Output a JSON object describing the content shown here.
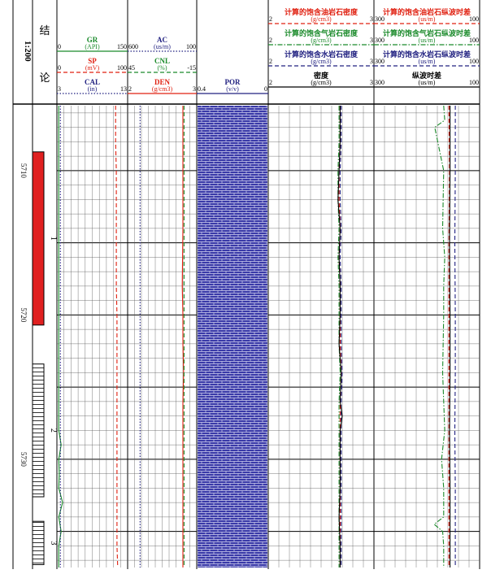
{
  "scale_label": "1:200",
  "conclusion_header": [
    "结",
    "论"
  ],
  "depth_marks": [
    "5710",
    "5720",
    "5730"
  ],
  "layer_labels": [
    "1",
    "2",
    "3"
  ],
  "track1": {
    "curves": [
      {
        "name": "GR",
        "unit": "(API)",
        "min": "0",
        "max": "150",
        "color": "#1a8a2a",
        "dash": "solid"
      },
      {
        "name": "SP",
        "unit": "(mV)",
        "min": "0",
        "max": "100",
        "color": "#e02010",
        "dash": "dash"
      },
      {
        "name": "CAL",
        "unit": "(in)",
        "min": "3",
        "max": "13",
        "color": "#202080",
        "dash": "dot"
      }
    ]
  },
  "track2": {
    "curves": [
      {
        "name": "AC",
        "unit": "(us/m)",
        "min": "600",
        "max": "100",
        "color": "#202080",
        "dash": "dot"
      },
      {
        "name": "CNL",
        "unit": "(%)",
        "min": "45",
        "max": "-15",
        "color": "#1a8a2a",
        "dash": "dash"
      },
      {
        "name": "DEN",
        "unit": "(g/cm3)",
        "min": "2",
        "max": "3",
        "color": "#e02010",
        "dash": "solid"
      }
    ]
  },
  "track3": {
    "curves": [
      {
        "name": "POR",
        "unit": "(v/v)",
        "min": "0.4",
        "max": "0",
        "color": "#202080",
        "dash": "solid"
      }
    ]
  },
  "track4": {
    "curves": [
      {
        "name": "计算的饱含油岩石密度",
        "unit": "(g/cm3)",
        "min": "2",
        "max": "3",
        "color": "#e02010",
        "dash": "dash"
      },
      {
        "name": "计算的饱含气岩石密度",
        "unit": "(g/cm3)",
        "min": "2",
        "max": "3",
        "color": "#1a8a2a",
        "dash": "dashdot"
      },
      {
        "name": "计算的饱含水岩石密度",
        "unit": "(g/cm3)",
        "min": "2",
        "max": "3",
        "color": "#202080",
        "dash": "dash"
      },
      {
        "name": "密度",
        "unit": "(g/cm3)",
        "min": "2",
        "max": "3",
        "color": "#000000",
        "dash": "solid"
      }
    ]
  },
  "track5": {
    "curves": [
      {
        "name": "计算的饱含油岩石纵波时差",
        "unit": "(us/m)",
        "min": "300",
        "max": "100",
        "color": "#e02010",
        "dash": "dash"
      },
      {
        "name": "计算的饱含气岩石纵波时差",
        "unit": "(us/m)",
        "min": "300",
        "max": "100",
        "color": "#1a8a2a",
        "dash": "dashdot"
      },
      {
        "name": "计算的饱含水岩石纵波时差",
        "unit": "(us/m)",
        "min": "300",
        "max": "100",
        "color": "#202080",
        "dash": "dash"
      },
      {
        "name": "纵波时差",
        "unit": "(us/m)",
        "min": "300",
        "max": "100",
        "color": "#000000",
        "dash": "solid"
      }
    ]
  },
  "chart_data": {
    "type": "line",
    "depth_range": [
      5705.5,
      5737.5
    ],
    "depth_tick_labels": [
      5710,
      5720,
      5730
    ],
    "layers": [
      {
        "label": "1",
        "top": 5708.7,
        "bottom": 5720.7,
        "pattern": "solid",
        "color": "#e02020"
      },
      {
        "label": "2",
        "top": 5723.4,
        "bottom": 5732.6,
        "pattern": "hatched",
        "color": "#ffffff"
      },
      {
        "label": "3",
        "top": 5734.3,
        "bottom": 5737.3,
        "pattern": "hatched",
        "color": "#ffffff"
      }
    ],
    "tracks": [
      {
        "track": 1,
        "series": [
          {
            "name": "GR",
            "range": [
              0,
              150
            ],
            "color": "#1a8a2a",
            "dash": "solid",
            "depth": [
              5705.5,
              5708,
              5710,
              5712,
              5714,
              5716,
              5718,
              5720,
              5721,
              5722,
              5723,
              5724,
              5725,
              5726,
              5727,
              5728,
              5729,
              5730,
              5731,
              5732,
              5733,
              5734,
              5735,
              5736,
              5737.5
            ],
            "values": [
              4,
              4,
              4,
              4,
              4,
              4,
              4,
              4,
              4,
              4,
              4,
              4,
              4,
              4,
              4,
              4,
              9,
              4,
              5,
              4,
              12,
              4,
              9,
              4,
              4
            ]
          },
          {
            "name": "SP",
            "range": [
              0,
              100
            ],
            "color": "#e02010",
            "dash": "dash",
            "depth": [
              5705.5,
              5708,
              5710,
              5712,
              5714,
              5716,
              5718,
              5720,
              5722,
              5724,
              5726,
              5728,
              5730,
              5732,
              5734,
              5736,
              5737.5
            ],
            "values": [
              83,
              83,
              84,
              84,
              84,
              84,
              84,
              85,
              85,
              85,
              85,
              85,
              85,
              85,
              85,
              85,
              86
            ]
          },
          {
            "name": "CAL",
            "range": [
              3,
              13
            ],
            "color": "#202080",
            "dash": "dot",
            "depth": [
              5705.5,
              5737.5
            ],
            "values": [
              3.5,
              3.5
            ]
          }
        ]
      },
      {
        "track": 2,
        "series": [
          {
            "name": "DEN",
            "range": [
              2,
              3
            ],
            "color": "#e02010",
            "dash": "solid",
            "depth": [
              5705.5,
              5710,
              5714,
              5718,
              5720,
              5722,
              5724,
              5726,
              5728,
              5730,
              5732,
              5734,
              5736,
              5737.5
            ],
            "values": [
              2.8,
              2.8,
              2.8,
              2.79,
              2.8,
              2.8,
              2.81,
              2.8,
              2.8,
              2.8,
              2.8,
              2.8,
              2.8,
              2.8
            ]
          },
          {
            "name": "CNL",
            "range": [
              45,
              -15
            ],
            "color": "#1a8a2a",
            "dash": "dash",
            "depth": [
              5705.5,
              5710,
              5714,
              5718,
              5722,
              5726,
              5730,
              5734,
              5737.5
            ],
            "values": [
              -4,
              -4,
              -4,
              -4,
              -4,
              -4,
              -4,
              -4,
              -4
            ]
          },
          {
            "name": "AC",
            "range": [
              600,
              100
            ],
            "color": "#202080",
            "dash": "dot",
            "depth": [
              5705.5,
              5737.5
            ],
            "values": [
              510,
              510
            ]
          }
        ]
      },
      {
        "track": 3,
        "series": [
          {
            "name": "POR",
            "range": [
              0.4,
              0
            ],
            "color": "#202080",
            "dash": "fill",
            "depth": [
              5705.5,
              5737.5
            ],
            "values": [
              0,
              0
            ]
          }
        ]
      },
      {
        "track": 4,
        "series": [
          {
            "name": "计算的饱含油岩石密度",
            "range": [
              2,
              3
            ],
            "color": "#e02010",
            "dash": "dash",
            "depth": [
              5705.5,
              5708,
              5710,
              5712,
              5714,
              5716,
              5718,
              5720,
              5722,
              5724,
              5726,
              5728,
              5730,
              5732,
              5734,
              5736,
              5737.5
            ],
            "values": [
              2.68,
              2.68,
              2.67,
              2.67,
              2.68,
              2.67,
              2.68,
              2.68,
              2.68,
              2.69,
              2.68,
              2.68,
              2.68,
              2.68,
              2.68,
              2.68,
              2.68
            ]
          },
          {
            "name": "计算的饱含气岩石密度",
            "range": [
              2,
              3
            ],
            "color": "#1a8a2a",
            "dash": "dashdot",
            "depth": [
              5705.5,
              5708,
              5710,
              5712,
              5714,
              5716,
              5718,
              5720,
              5722,
              5724,
              5726,
              5728,
              5730,
              5732,
              5734,
              5736,
              5737.5
            ],
            "values": [
              2.67,
              2.67,
              2.66,
              2.66,
              2.67,
              2.66,
              2.67,
              2.67,
              2.67,
              2.68,
              2.67,
              2.67,
              2.67,
              2.67,
              2.67,
              2.67,
              2.67
            ]
          },
          {
            "name": "计算的饱含水岩石密度",
            "range": [
              2,
              3
            ],
            "color": "#202080",
            "dash": "dash",
            "depth": [
              5705.5,
              5708,
              5710,
              5712,
              5714,
              5716,
              5718,
              5720,
              5722,
              5724,
              5726,
              5728,
              5730,
              5732,
              5734,
              5736,
              5737.5
            ],
            "values": [
              2.69,
              2.69,
              2.68,
              2.68,
              2.69,
              2.68,
              2.69,
              2.69,
              2.69,
              2.7,
              2.69,
              2.69,
              2.69,
              2.69,
              2.69,
              2.69,
              2.69
            ]
          },
          {
            "name": "密度",
            "range": [
              2,
              3
            ],
            "color": "#000000",
            "dash": "solid",
            "depth": [
              5705.5,
              5708,
              5710,
              5712,
              5714,
              5716,
              5718,
              5720,
              5722,
              5724,
              5726,
              5727,
              5728,
              5730,
              5732,
              5734,
              5736,
              5737.5
            ],
            "values": [
              2.68,
              2.68,
              2.67,
              2.66,
              2.68,
              2.67,
              2.68,
              2.68,
              2.67,
              2.69,
              2.68,
              2.7,
              2.68,
              2.68,
              2.68,
              2.67,
              2.68,
              2.68
            ]
          }
        ]
      },
      {
        "track": 5,
        "series": [
          {
            "name": "计算的饱含油岩石纵波时差",
            "range": [
              300,
              100
            ],
            "color": "#e02010",
            "dash": "dash",
            "depth": [
              5705.5,
              5710,
              5715,
              5720,
              5724,
              5728,
              5732,
              5735,
              5737.5
            ],
            "values": [
              158,
              157,
              158,
              158,
              158,
              158,
              158,
              158,
              158
            ]
          },
          {
            "name": "计算的饱含气岩石纵波时差",
            "range": [
              300,
              100
            ],
            "color": "#1a8a2a",
            "dash": "dashdot",
            "depth": [
              5705.5,
              5706.5,
              5707,
              5710,
              5714,
              5716,
              5718,
              5720,
              5724,
              5726,
              5728,
              5730,
              5732,
              5734,
              5734.5,
              5735,
              5736,
              5737.5
            ],
            "values": [
              168,
              166,
              185,
              168,
              170,
              166,
              168,
              168,
              170,
              168,
              166,
              172,
              168,
              168,
              186,
              170,
              168,
              168
            ]
          },
          {
            "name": "计算的饱含水岩石纵波时差",
            "range": [
              300,
              100
            ],
            "color": "#202080",
            "dash": "dash",
            "depth": [
              5705.5,
              5710,
              5715,
              5720,
              5724,
              5728,
              5732,
              5735,
              5737.5
            ],
            "values": [
              146,
              146,
              147,
              146,
              146,
              147,
              146,
              146,
              146
            ]
          },
          {
            "name": "纵波时差",
            "range": [
              300,
              100
            ],
            "color": "#000000",
            "dash": "solid",
            "depth": [
              5705.5,
              5710,
              5715,
              5720,
              5724,
              5728,
              5732,
              5735,
              5737.5
            ],
            "values": [
              156,
              156,
              157,
              156,
              156,
              157,
              156,
              156,
              156
            ]
          }
        ]
      }
    ]
  }
}
